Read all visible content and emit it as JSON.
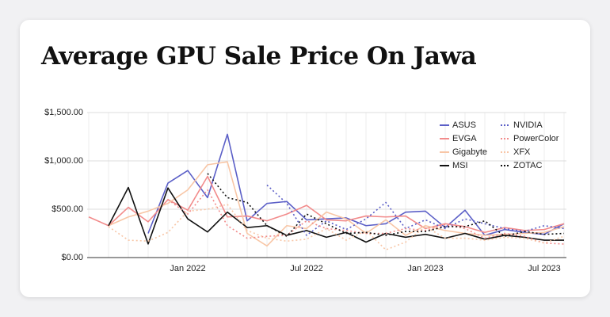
{
  "chart_data": {
    "type": "line",
    "title": "Average GPU Sale Price On Jawa",
    "categories": [
      null,
      null,
      null,
      null,
      null,
      "Jan 2022",
      null,
      null,
      null,
      null,
      null,
      "Jul 2022",
      null,
      null,
      null,
      null,
      null,
      "Jan 2023",
      null,
      null,
      null,
      null,
      null,
      "Jul 2023",
      null
    ],
    "ylim": [
      0,
      1500
    ],
    "yticks": [
      {
        "value": 0,
        "label": "$0.00"
      },
      {
        "value": 500,
        "label": "$500.00"
      },
      {
        "value": 1000,
        "label": "$1,000.00"
      },
      {
        "value": 1500,
        "label": "$1,500.00"
      }
    ],
    "grid": true,
    "legend": "top-right",
    "series": [
      {
        "name": "ASUS",
        "color": "#5b5fc7",
        "dashed": false,
        "values": [
          null,
          null,
          null,
          250,
          770,
          900,
          620,
          1275,
          380,
          560,
          580,
          390,
          400,
          410,
          330,
          350,
          470,
          480,
          310,
          490,
          230,
          290,
          260,
          240,
          350
        ]
      },
      {
        "name": "EVGA",
        "color": "#f28b8b",
        "dashed": false,
        "values": [
          420,
          330,
          520,
          370,
          600,
          490,
          840,
          420,
          430,
          380,
          450,
          540,
          390,
          380,
          430,
          420,
          430,
          300,
          350,
          320,
          260,
          310,
          280,
          290,
          350
        ]
      },
      {
        "name": "Gigabyte",
        "color": "#f8c6a6",
        "dashed": false,
        "values": [
          null,
          330,
          420,
          480,
          560,
          700,
          960,
          990,
          250,
          120,
          330,
          300,
          470,
          400,
          250,
          390,
          230,
          330,
          280,
          250,
          230,
          240,
          250,
          260,
          320
        ]
      },
      {
        "name": "MSI",
        "color": "#111111",
        "dashed": false,
        "values": [
          null,
          330,
          725,
          140,
          720,
          400,
          265,
          470,
          310,
          330,
          230,
          280,
          210,
          260,
          160,
          250,
          210,
          240,
          200,
          250,
          190,
          230,
          210,
          180,
          180
        ]
      },
      {
        "name": "NVIDIA",
        "color": "#5b5fc7",
        "dashed": true,
        "values": [
          null,
          null,
          null,
          null,
          null,
          null,
          null,
          null,
          null,
          750,
          560,
          230,
          380,
          290,
          400,
          570,
          300,
          390,
          300,
          400,
          350,
          300,
          270,
          330,
          300
        ]
      },
      {
        "name": "PowerColor",
        "color": "#f28b8b",
        "dashed": true,
        "values": [
          null,
          null,
          null,
          null,
          600,
          450,
          700,
          330,
          200,
          220,
          230,
          380,
          300,
          280,
          250,
          250,
          300,
          280,
          340,
          300,
          200,
          250,
          220,
          150,
          140
        ]
      },
      {
        "name": "XFX",
        "color": "#f8c6a6",
        "dashed": true,
        "values": [
          null,
          320,
          180,
          170,
          260,
          480,
          500,
          550,
          280,
          200,
          170,
          190,
          300,
          180,
          280,
          80,
          160,
          320,
          200,
          200,
          180,
          210,
          200,
          150,
          220
        ]
      },
      {
        "name": "ZOTAC",
        "color": "#111111",
        "dashed": true,
        "values": [
          null,
          null,
          null,
          null,
          null,
          null,
          870,
          620,
          570,
          330,
          220,
          450,
          350,
          250,
          260,
          230,
          270,
          270,
          320,
          320,
          380,
          220,
          270,
          240,
          250
        ]
      }
    ]
  }
}
